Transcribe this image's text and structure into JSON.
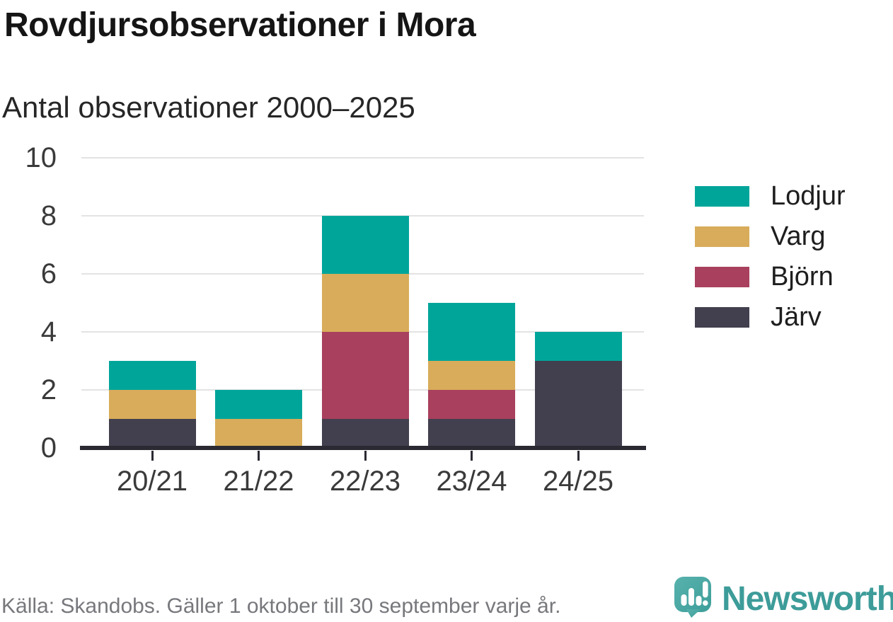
{
  "header": {
    "title": "Rovdjursobservationer i Mora",
    "subtitle": "Antal observationer 2000–2025"
  },
  "chart_data": {
    "type": "bar",
    "stacked": true,
    "title": "Rovdjursobservationer i Mora",
    "subtitle": "Antal observationer 2000–2025",
    "categories": [
      "20/21",
      "21/22",
      "22/23",
      "23/24",
      "24/25"
    ],
    "series": [
      {
        "name": "Järv",
        "color": "#423F4E",
        "values": [
          1,
          0,
          1,
          1,
          3
        ]
      },
      {
        "name": "Björn",
        "color": "#A8405E",
        "values": [
          0,
          0,
          3,
          1,
          0
        ]
      },
      {
        "name": "Varg",
        "color": "#D8AC5A",
        "values": [
          1,
          1,
          2,
          1,
          0
        ]
      },
      {
        "name": "Lodjur",
        "color": "#00A59A",
        "values": [
          1,
          1,
          2,
          2,
          1
        ]
      }
    ],
    "stack_order_bottom_to_top": [
      "Järv",
      "Björn",
      "Varg",
      "Lodjur"
    ],
    "totals": [
      3,
      2,
      8,
      5,
      4
    ],
    "xlabel": "",
    "ylabel": "",
    "ylim": [
      0,
      10
    ],
    "yticks": [
      0,
      2,
      4,
      6,
      8,
      10
    ],
    "grid": true,
    "legend_position": "right",
    "legend_order": [
      "Lodjur",
      "Varg",
      "Björn",
      "Järv"
    ]
  },
  "legend": {
    "items": [
      {
        "label": "Lodjur",
        "color": "#00A59A"
      },
      {
        "label": "Varg",
        "color": "#D8AC5A"
      },
      {
        "label": "Björn",
        "color": "#A8405E"
      },
      {
        "label": "Järv",
        "color": "#423F4E"
      }
    ]
  },
  "footer": {
    "source": "Källa: Skandobs. Gäller 1 oktober till 30 september varje år.",
    "brand": "Newsworthy"
  },
  "colors": {
    "teal": "#00A59A",
    "gold": "#D8AC5A",
    "maroon": "#A8405E",
    "slate": "#423F4E",
    "axis": "#2B2A33",
    "grid": "#E3E3E3",
    "brand_teal": "#3D9C99",
    "brand_bubble_light": "#58B2AD",
    "brand_bubble_dark": "#3E9E9A",
    "footer_text": "#77787C"
  }
}
